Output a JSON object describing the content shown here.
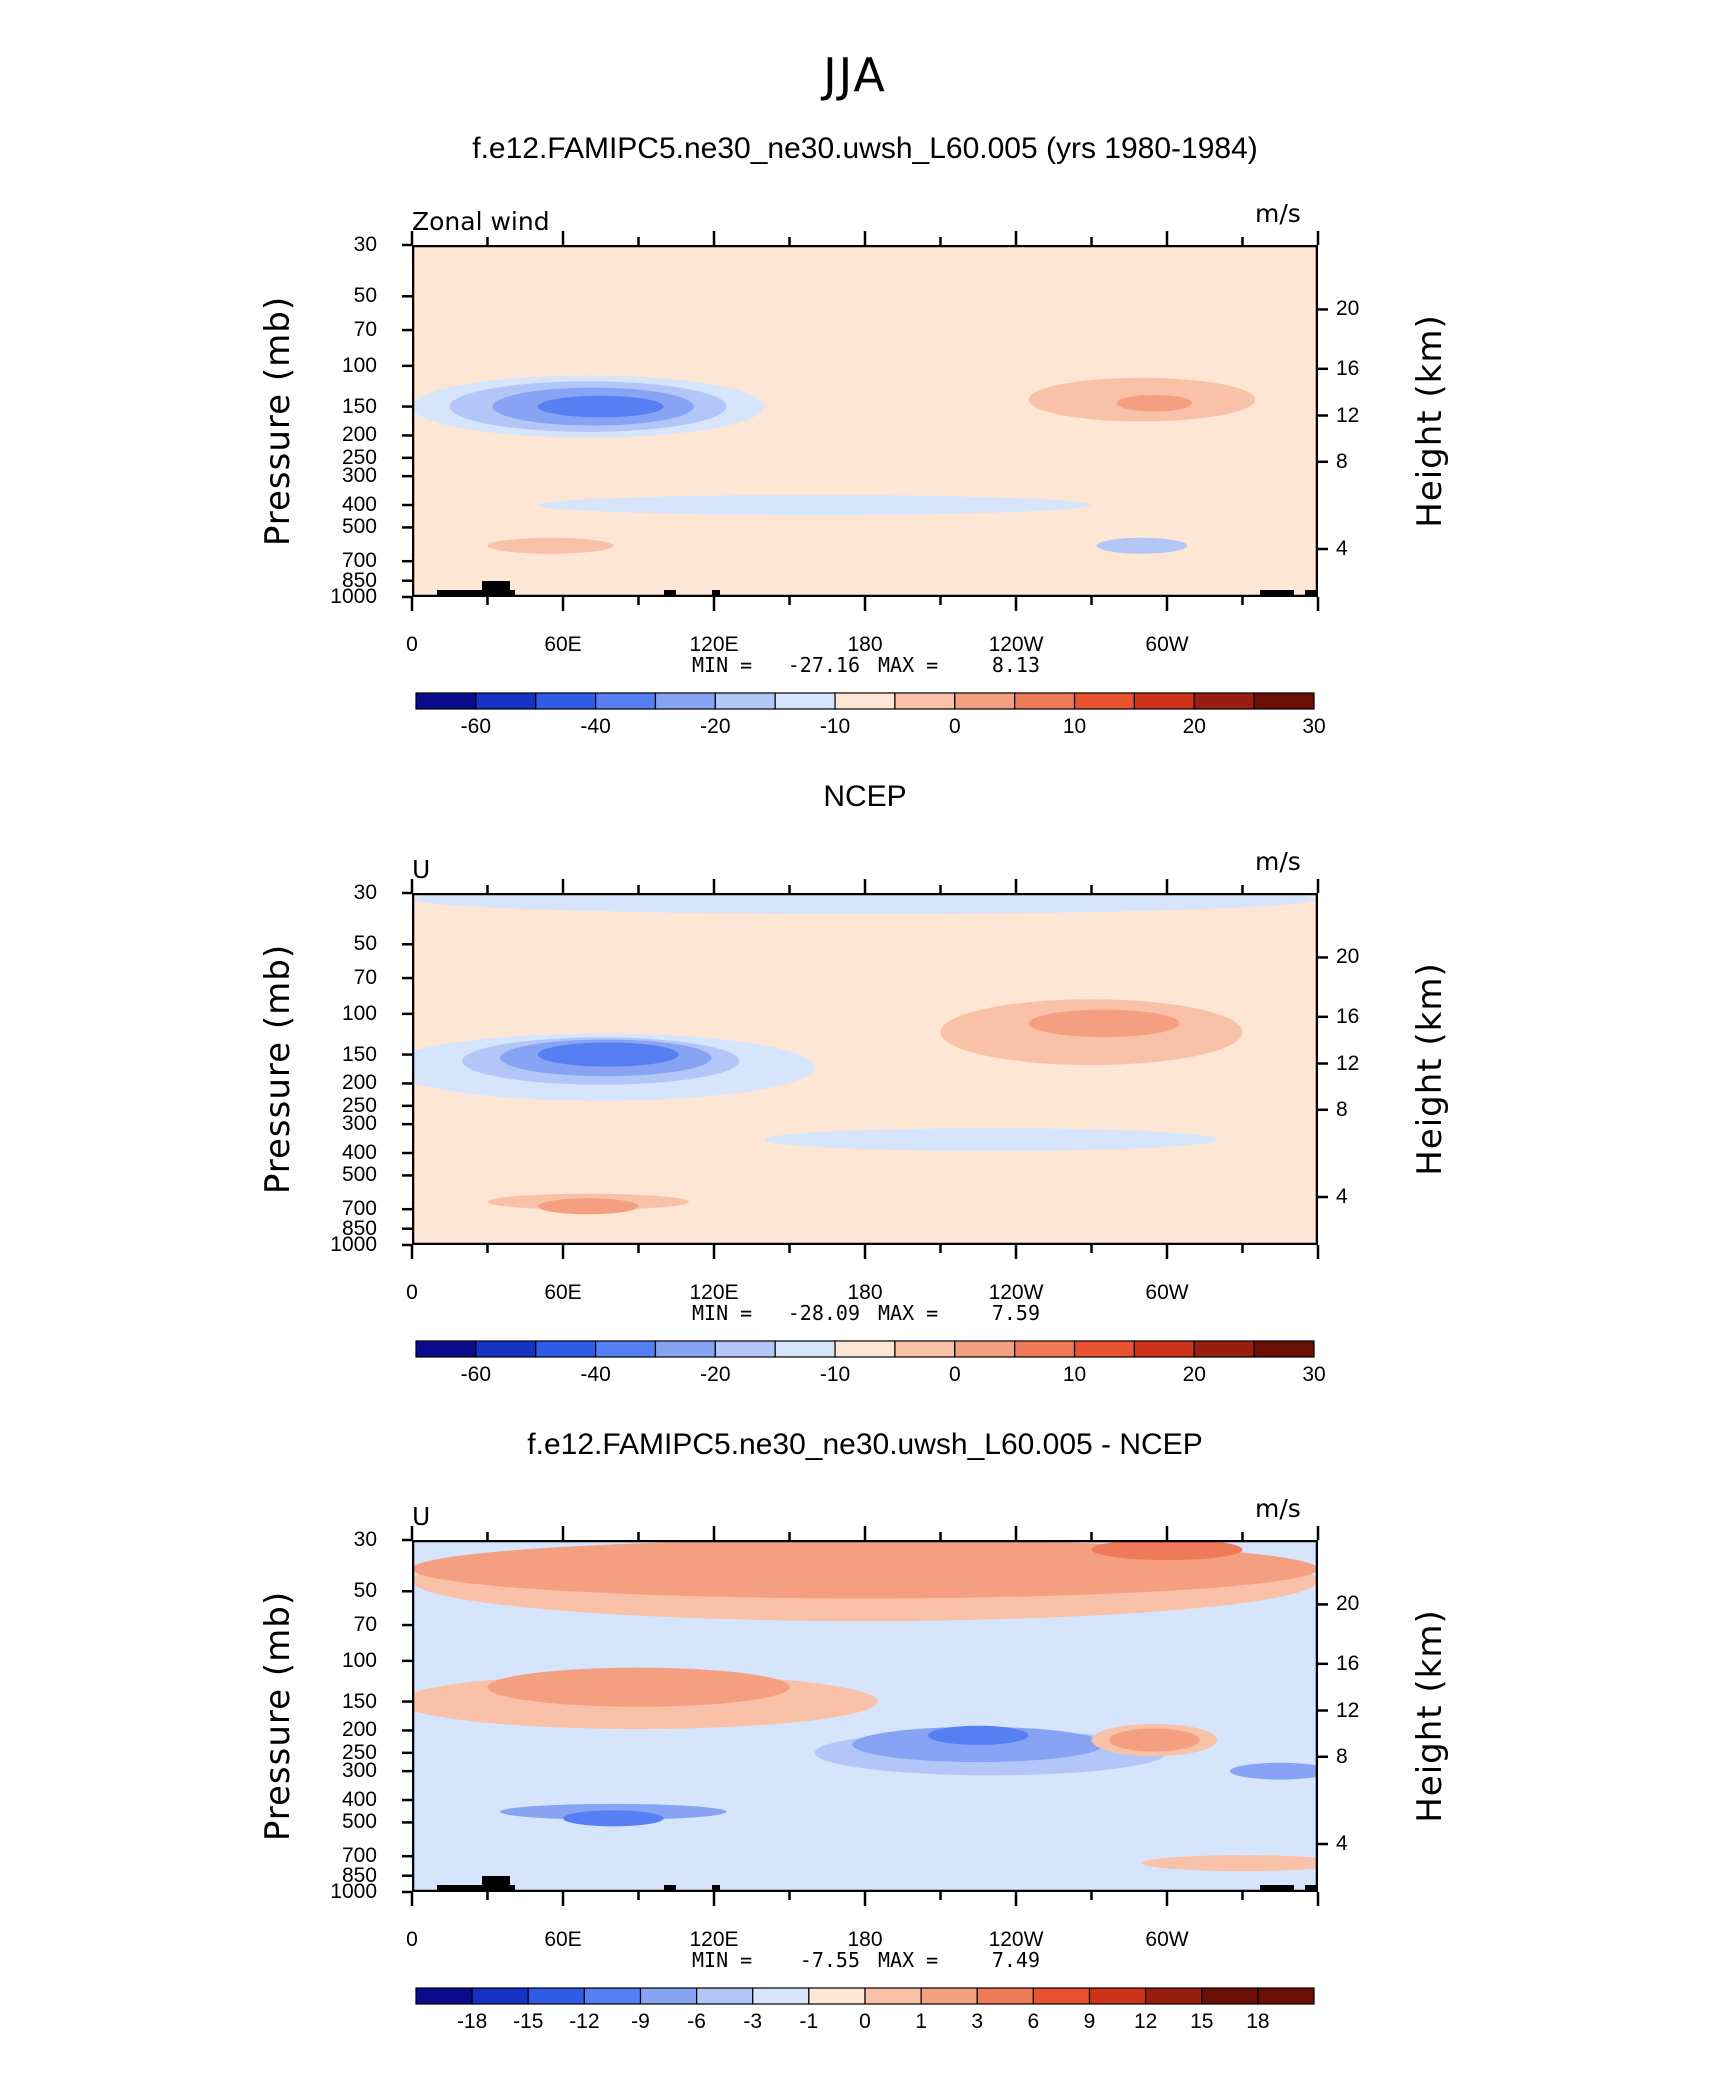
{
  "figure_title": "JJA",
  "colors": {
    "n9": "#0a0a8c",
    "n8": "#1532c4",
    "n7": "#2e5ce6",
    "n6": "#557ff2",
    "n5": "#86a4f3",
    "n4": "#b2c7f7",
    "n3": "#d6e5fb",
    "p1": "#fde6d4",
    "p2": "#f9c2a8",
    "p3": "#f49f80",
    "p4": "#ee7a58",
    "p5": "#e8522e",
    "p6": "#cc3318",
    "p7": "#9a1e10",
    "p8": "#6a0e06",
    "topo": "#000000"
  },
  "chart_data": [
    {
      "type": "contour",
      "title": "f.e12.FAMIPC5.ne30_ne30.uwsh_L60.005 (yrs 1980-1984)",
      "left_label": "Zonal wind",
      "units": "m/s",
      "ylabel": "Pressure (mb)",
      "ylabel_right": "Height (km)",
      "pressure_ticks": [
        "30",
        "50",
        "70",
        "100",
        "150",
        "200",
        "250",
        "300",
        "400",
        "500",
        "700",
        "850",
        "1000"
      ],
      "height_ticks": [
        "20",
        "16",
        "12",
        "8",
        "4"
      ],
      "lon_ticks": [
        "0",
        "60E",
        "120E",
        "180",
        "120W",
        "60W"
      ],
      "min_label": "MIN = ",
      "min": "-27.16",
      "max_label": "MAX = ",
      "max": "8.13",
      "colorbar_labels": [
        "-60",
        "-40",
        "-20",
        "-10",
        "0",
        "10",
        "20",
        "30"
      ],
      "background_level": "p1",
      "features": [
        {
          "level": "n3",
          "lon": 70,
          "p": 150,
          "dlon": 70,
          "dp": 45
        },
        {
          "level": "n4",
          "lon": 70,
          "p": 150,
          "dlon": 55,
          "dp": 37
        },
        {
          "level": "n5",
          "lon": 72,
          "p": 150,
          "dlon": 40,
          "dp": 28
        },
        {
          "level": "n6",
          "lon": 75,
          "p": 150,
          "dlon": 25,
          "dp": 16
        },
        {
          "level": "n3",
          "lon": 160,
          "p": 400,
          "dlon": 110,
          "dp": 40
        },
        {
          "level": "n4",
          "lon": 290,
          "p": 600,
          "dlon": 18,
          "dp": 20
        },
        {
          "level": "p2",
          "lon": 290,
          "p": 140,
          "dlon": 45,
          "dp": 30
        },
        {
          "level": "p3",
          "lon": 295,
          "p": 145,
          "dlon": 15,
          "dp": 12
        },
        {
          "level": "p2",
          "lon": 55,
          "p": 600,
          "dlon": 25,
          "dp": 25
        }
      ]
    },
    {
      "type": "contour",
      "title": "NCEP",
      "left_label": "U",
      "units": "m/s",
      "ylabel": "Pressure (mb)",
      "ylabel_right": "Height (km)",
      "pressure_ticks": [
        "30",
        "50",
        "70",
        "100",
        "150",
        "200",
        "250",
        "300",
        "400",
        "500",
        "700",
        "850",
        "1000"
      ],
      "height_ticks": [
        "20",
        "16",
        "12",
        "8",
        "4"
      ],
      "lon_ticks": [
        "0",
        "60E",
        "120E",
        "180",
        "120W",
        "60W"
      ],
      "min_label": "MIN = ",
      "min": "-28.09",
      "max_label": "MAX = ",
      "max": "7.59",
      "colorbar_labels": [
        "-60",
        "-40",
        "-20",
        "-10",
        "0",
        "10",
        "20",
        "30"
      ],
      "background_level": "p1",
      "features": [
        {
          "level": "n3",
          "lon": 180,
          "p": 32,
          "dlon": 180,
          "dp": 8
        },
        {
          "level": "n3",
          "lon": 75,
          "p": 170,
          "dlon": 85,
          "dp": 55
        },
        {
          "level": "n4",
          "lon": 75,
          "p": 160,
          "dlon": 55,
          "dp": 37
        },
        {
          "level": "n5",
          "lon": 77,
          "p": 155,
          "dlon": 42,
          "dp": 28
        },
        {
          "level": "n6",
          "lon": 78,
          "p": 150,
          "dlon": 28,
          "dp": 18
        },
        {
          "level": "n3",
          "lon": 230,
          "p": 350,
          "dlon": 90,
          "dp": 40
        },
        {
          "level": "p2",
          "lon": 270,
          "p": 120,
          "dlon": 60,
          "dp": 38
        },
        {
          "level": "p3",
          "lon": 275,
          "p": 110,
          "dlon": 30,
          "dp": 15
        },
        {
          "level": "p2",
          "lon": 70,
          "p": 650,
          "dlon": 40,
          "dp": 25
        },
        {
          "level": "p3",
          "lon": 70,
          "p": 680,
          "dlon": 20,
          "dp": 13
        }
      ]
    },
    {
      "type": "contour",
      "title": "f.e12.FAMIPC5.ne30_ne30.uwsh_L60.005 - NCEP",
      "left_label": "U",
      "units": "m/s",
      "ylabel": "Pressure (mb)",
      "ylabel_right": "Height (km)",
      "pressure_ticks": [
        "30",
        "50",
        "70",
        "100",
        "150",
        "200",
        "250",
        "300",
        "400",
        "500",
        "700",
        "850",
        "1000"
      ],
      "height_ticks": [
        "20",
        "16",
        "12",
        "8",
        "4"
      ],
      "lon_ticks": [
        "0",
        "60E",
        "120E",
        "180",
        "120W",
        "60W"
      ],
      "min_label": "MIN = ",
      "min": "-7.55",
      "max_label": "MAX = ",
      "max": "7.49",
      "colorbar_labels": [
        "-18",
        "-15",
        "-12",
        "-9",
        "-6",
        "-3",
        "-1",
        "0",
        "1",
        "3",
        "6",
        "9",
        "12",
        "15",
        "18"
      ],
      "background_level": "n3",
      "features": [
        {
          "level": "p2",
          "lon": 180,
          "p": 45,
          "dlon": 180,
          "dp": 22
        },
        {
          "level": "p3",
          "lon": 180,
          "p": 40,
          "dlon": 180,
          "dp": 14
        },
        {
          "level": "p4",
          "lon": 300,
          "p": 33,
          "dlon": 30,
          "dp": 4
        },
        {
          "level": "p2",
          "lon": 90,
          "p": 150,
          "dlon": 95,
          "dp": 40
        },
        {
          "level": "p3",
          "lon": 90,
          "p": 130,
          "dlon": 60,
          "dp": 25
        },
        {
          "level": "n4",
          "lon": 230,
          "p": 250,
          "dlon": 70,
          "dp": 55
        },
        {
          "level": "n5",
          "lon": 225,
          "p": 230,
          "dlon": 50,
          "dp": 40
        },
        {
          "level": "n6",
          "lon": 225,
          "p": 210,
          "dlon": 20,
          "dp": 20
        },
        {
          "level": "p2",
          "lon": 295,
          "p": 220,
          "dlon": 25,
          "dp": 35
        },
        {
          "level": "p3",
          "lon": 295,
          "p": 220,
          "dlon": 18,
          "dp": 25
        },
        {
          "level": "n5",
          "lon": 345,
          "p": 300,
          "dlon": 20,
          "dp": 25
        },
        {
          "level": "n5",
          "lon": 80,
          "p": 450,
          "dlon": 45,
          "dp": 30
        },
        {
          "level": "n6",
          "lon": 80,
          "p": 480,
          "dlon": 20,
          "dp": 18
        },
        {
          "level": "p2",
          "lon": 330,
          "p": 750,
          "dlon": 40,
          "dp": 20
        }
      ]
    }
  ]
}
